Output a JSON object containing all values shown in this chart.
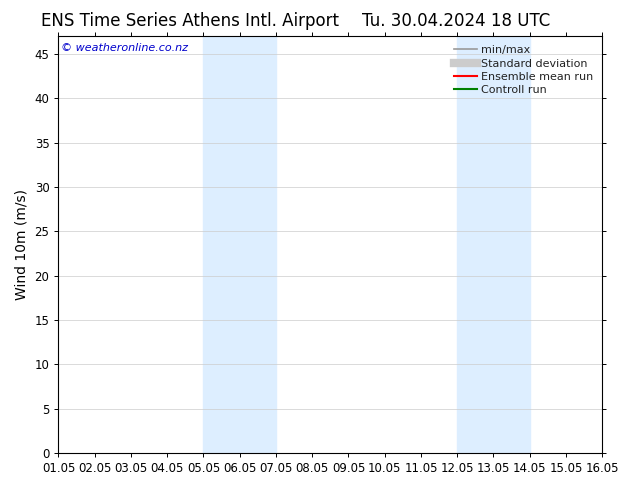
{
  "title_left": "ENS Time Series Athens Intl. Airport",
  "title_right": "Tu. 30.04.2024 18 UTC",
  "ylabel": "Wind 10m (m/s)",
  "watermark": "© weatheronline.co.nz",
  "xtick_labels": [
    "01.05",
    "02.05",
    "03.05",
    "04.05",
    "05.05",
    "06.05",
    "07.05",
    "08.05",
    "09.05",
    "10.05",
    "11.05",
    "12.05",
    "13.05",
    "14.05",
    "15.05",
    "16.05"
  ],
  "ylim": [
    0,
    47
  ],
  "yticks": [
    0,
    5,
    10,
    15,
    20,
    25,
    30,
    35,
    40,
    45
  ],
  "shaded_regions": [
    {
      "xstart": 4.0,
      "xend": 6.0
    },
    {
      "xstart": 11.0,
      "xend": 13.0
    }
  ],
  "shade_color": "#ddeeff",
  "background_color": "#ffffff",
  "plot_bg_color": "#ffffff",
  "legend_items": [
    {
      "label": "min/max",
      "color": "#999999",
      "lw": 1.2
    },
    {
      "label": "Standard deviation",
      "color": "#cccccc",
      "lw": 6
    },
    {
      "label": "Ensemble mean run",
      "color": "#ff0000",
      "lw": 1.5
    },
    {
      "label": "Controll run",
      "color": "#008000",
      "lw": 1.5
    }
  ],
  "title_fontsize": 12,
  "tick_label_fontsize": 8.5,
  "ylabel_fontsize": 10,
  "watermark_color": "#0000cc",
  "watermark_fontsize": 8,
  "legend_fontsize": 8,
  "grid_color": "#cccccc",
  "border_color": "#000000"
}
